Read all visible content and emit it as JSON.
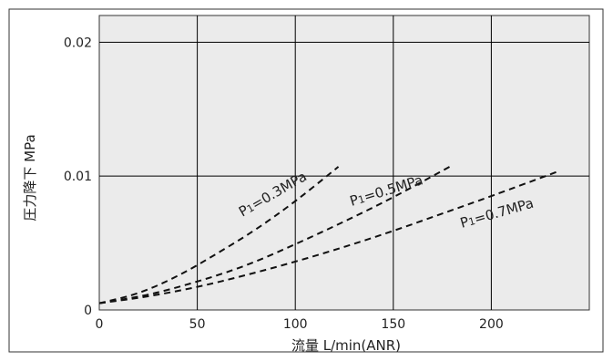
{
  "chart_data": {
    "type": "line",
    "xlabel": "流量 L/min(ANR)",
    "ylabel": "圧力降下 MPa",
    "xlim": [
      0,
      250
    ],
    "ylim": [
      0,
      0.022
    ],
    "x_ticks": [
      0,
      50,
      100,
      150,
      200
    ],
    "x_tick_labels": [
      "0",
      "50",
      "100",
      "150",
      "200"
    ],
    "y_ticks": [
      0,
      0.01,
      0.02
    ],
    "y_tick_labels": [
      "0",
      "0.01",
      "0.02"
    ],
    "grid": true,
    "line_style": "dashed",
    "colors": {
      "plot_background": "#ebebeb",
      "line": "#111111",
      "grid": "#000000",
      "frame": "#333333"
    },
    "series": [
      {
        "label_parts": [
          "P",
          "1",
          "=0.3MPa"
        ],
        "x": [
          0,
          20,
          40,
          60,
          80,
          100,
          122
        ],
        "y": [
          0.0005,
          0.0012,
          0.0025,
          0.0042,
          0.006,
          0.0081,
          0.0107
        ]
      },
      {
        "label_parts": [
          "P",
          "1",
          "=0.5MPa"
        ],
        "x": [
          0,
          25,
          50,
          75,
          100,
          125,
          150,
          180
        ],
        "y": [
          0.0005,
          0.0011,
          0.0021,
          0.0033,
          0.0049,
          0.0066,
          0.0084,
          0.0108
        ]
      },
      {
        "label_parts": [
          "P",
          "1",
          "=0.7MPa"
        ],
        "x": [
          0,
          25,
          50,
          75,
          100,
          125,
          150,
          175,
          200,
          235
        ],
        "y": [
          0.0005,
          0.001,
          0.0017,
          0.0026,
          0.0036,
          0.0047,
          0.0059,
          0.0072,
          0.0085,
          0.0104
        ]
      }
    ]
  }
}
